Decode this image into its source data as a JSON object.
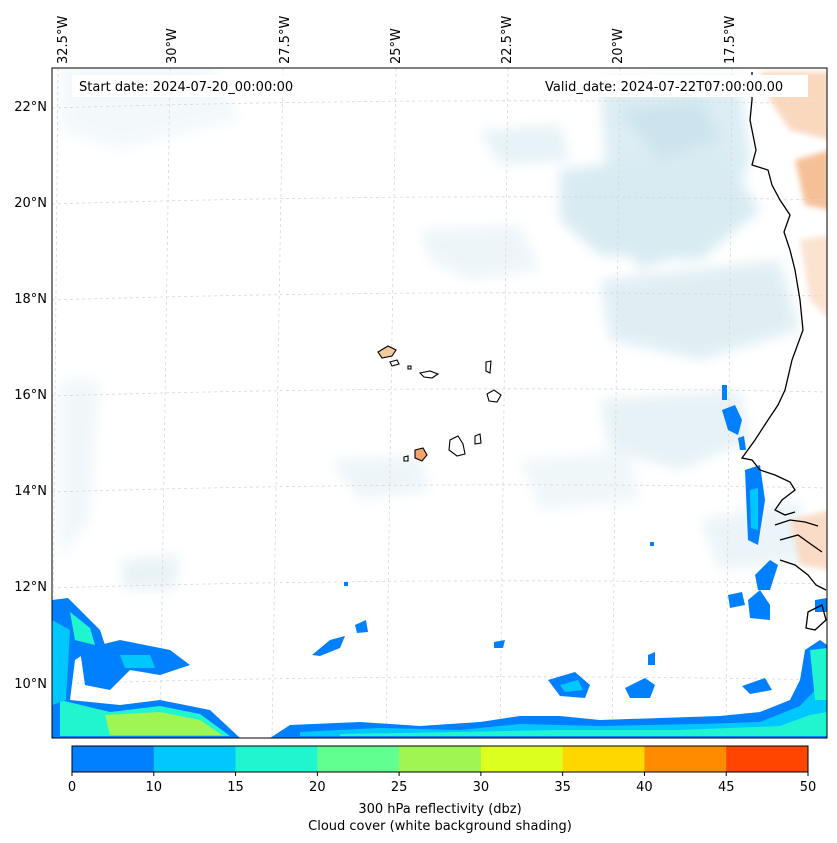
{
  "map": {
    "start_date_label": "Start date: 2024-07-20_00:00:00",
    "valid_date_label": "Valid_date: 2024-07-22T07:00:00.00",
    "longitude_labels": [
      "32.5°W",
      "30°W",
      "27.5°W",
      "25°W",
      "22.5°W",
      "20°W",
      "17.5°W"
    ],
    "latitude_labels": [
      "22°N",
      "20°N",
      "18°N",
      "16°N",
      "14°N",
      "12°N",
      "10°N"
    ]
  },
  "colorbar": {
    "ticks": [
      "0",
      "10",
      "15",
      "20",
      "25",
      "30",
      "35",
      "40",
      "45",
      "50"
    ],
    "colors": [
      "#0080ff",
      "#00c8ff",
      "#20f5d0",
      "#60ff90",
      "#a0f550",
      "#dcff20",
      "#ffd700",
      "#ff8c00",
      "#ff4500"
    ],
    "label_line1": "300 hPa reflectivity (dbz)",
    "label_line2": "Cloud cover (white background shading)"
  },
  "colors": {
    "land_tan": "#f2c9a0",
    "cloud_blue": "#cfe6ef",
    "warm_cloud": "#f8d2b4"
  }
}
